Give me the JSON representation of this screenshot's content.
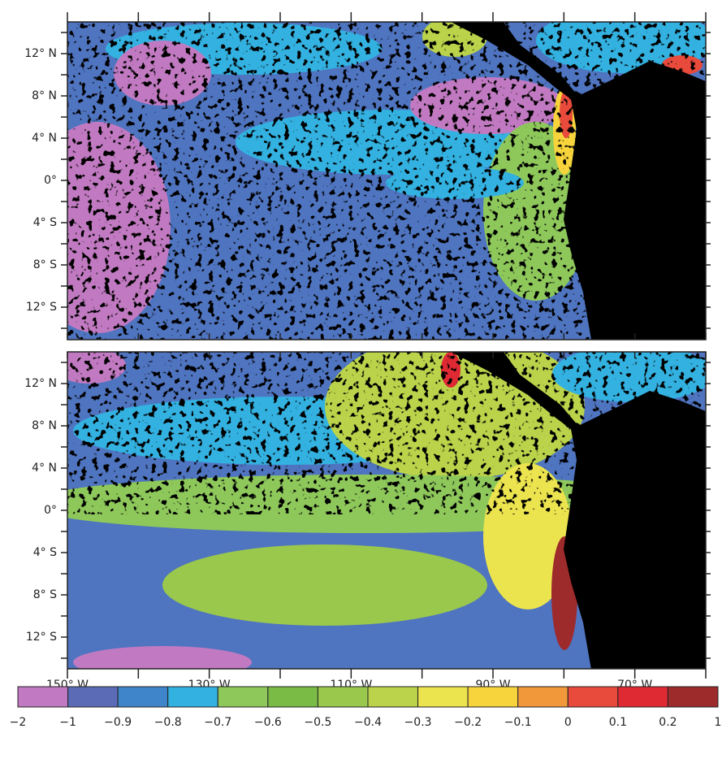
{
  "y_axis_labels": [
    "12° N",
    "8° N",
    "4° N",
    "0°",
    "4° S",
    "8° S",
    "12° S"
  ],
  "x_axis_labels": [
    "150° W",
    "130° W",
    "110° W",
    "90° W",
    "70° W"
  ],
  "colorbar": {
    "labels": [
      "−2",
      "−1",
      "−0.9",
      "−0.8",
      "−0.7",
      "−0.6",
      "−0.5",
      "−0.4",
      "−0.3",
      "−0.2",
      "−0.1",
      "0",
      "0.1",
      "0.2",
      "1"
    ],
    "colors": [
      "#c17ac1",
      "#5b6bb5",
      "#3e85c9",
      "#33b1e0",
      "#8ec85b",
      "#7abb45",
      "#9ac84d",
      "#bad34a",
      "#ece44f",
      "#f7d43b",
      "#f0983a",
      "#e84a3b",
      "#df2a34",
      "#9e2b2b"
    ]
  }
}
